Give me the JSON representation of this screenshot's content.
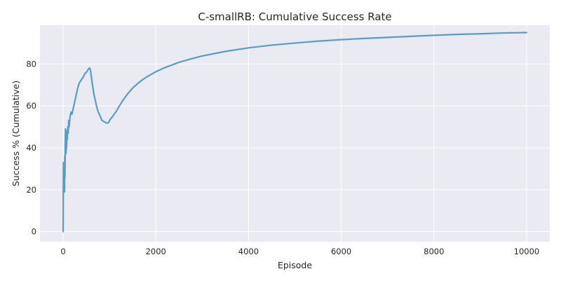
{
  "chart_data": {
    "type": "line",
    "title": "C-smallRB: Cumulative Success Rate",
    "xlabel": "Episode",
    "ylabel": "Success % (Cumulative)",
    "xlim": [
      -500,
      10500
    ],
    "ylim": [
      -4.8,
      98.5
    ],
    "xticks": [
      0,
      2000,
      4000,
      6000,
      8000,
      10000
    ],
    "xtick_labels": [
      "0",
      "2000",
      "4000",
      "6000",
      "8000",
      "10000"
    ],
    "yticks": [
      0,
      20,
      40,
      60,
      80
    ],
    "ytick_labels": [
      "0",
      "20",
      "40",
      "60",
      "80"
    ],
    "grid": true,
    "legend": "none",
    "background": "#eaeaf2",
    "grid_color": "#ffffff",
    "series": [
      {
        "color": "#5b9bc8",
        "x": [
          0,
          3,
          6,
          10,
          15,
          20,
          25,
          30,
          35,
          40,
          45,
          50,
          55,
          60,
          65,
          70,
          75,
          80,
          90,
          100,
          110,
          120,
          130,
          150,
          170,
          190,
          210,
          230,
          250,
          270,
          290,
          320,
          350,
          380,
          410,
          440,
          470,
          500,
          530,
          560,
          575,
          590,
          600,
          620,
          640,
          660,
          680,
          700,
          730,
          760,
          800,
          840,
          880,
          920,
          950,
          980,
          1000,
          1030,
          1070,
          1100,
          1150,
          1200,
          1300,
          1400,
          1500,
          1600,
          1700,
          1800,
          2000,
          2200,
          2500,
          2800,
          3000,
          3500,
          4000,
          4500,
          5000,
          5500,
          6000,
          6500,
          7000,
          7500,
          8000,
          8500,
          9000,
          9500,
          10000
        ],
        "y": [
          0,
          18,
          33,
          21,
          30,
          25,
          33,
          19,
          36,
          26,
          41,
          49,
          37,
          45,
          38,
          48,
          40,
          46,
          44,
          50,
          47,
          53,
          50,
          55,
          57,
          56,
          58,
          60,
          62,
          64,
          66,
          69,
          71,
          72,
          73,
          74,
          75.5,
          76,
          77,
          78,
          78,
          77,
          75.5,
          72,
          69,
          66,
          64,
          62,
          59,
          57,
          55,
          53,
          52.5,
          52,
          51.8,
          52,
          53,
          54,
          55,
          56,
          57.5,
          59.5,
          63,
          66,
          68.5,
          70.5,
          72.3,
          73.8,
          76.3,
          78.3,
          80.8,
          82.7,
          83.8,
          86,
          87.7,
          89,
          90,
          90.9,
          91.6,
          92.2,
          92.7,
          93.2,
          93.7,
          94.1,
          94.4,
          94.8,
          95
        ]
      }
    ]
  }
}
